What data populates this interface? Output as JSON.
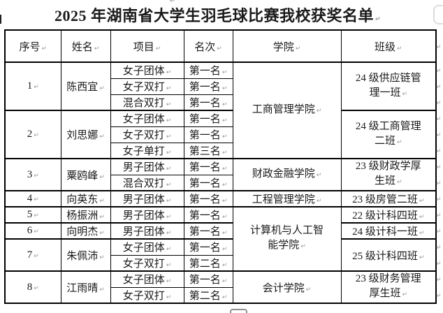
{
  "document": {
    "title": "2025 年湖南省大学生羽毛球比赛我校获奖名单"
  },
  "marks": {
    "pilcrow": "↵"
  },
  "colors": {
    "border": "#000000",
    "formatting_mark": "#9a9a9a",
    "background": "#ffffff"
  },
  "table": {
    "headers": [
      "序号",
      "姓名",
      "项目",
      "名次",
      "学院",
      "班级"
    ],
    "colleges": [
      {
        "name": "工商管理学院"
      },
      {
        "name": "财政金融学院"
      },
      {
        "name": "工程管理学院"
      },
      {
        "name": "计算机与人工智\n能学院"
      },
      {
        "name": "会计学院"
      }
    ],
    "persons": [
      {
        "no": "1",
        "name": "陈西宜",
        "class_name": "24 级供应链管\n理一班",
        "events": [
          {
            "item": "女子团体",
            "rank": "第一名"
          },
          {
            "item": "女子双打",
            "rank": "第一名"
          },
          {
            "item": "混合双打",
            "rank": "第一名"
          }
        ]
      },
      {
        "no": "2",
        "name": "刘思娜",
        "class_name": "24 级工商管理\n二班",
        "events": [
          {
            "item": "女子团体",
            "rank": "第一名"
          },
          {
            "item": "女子双打",
            "rank": "第一名"
          },
          {
            "item": "女子单打",
            "rank": "第三名"
          }
        ]
      },
      {
        "no": "3",
        "name": "粟鸥峰",
        "class_name": "23 级财政学厚\n生班",
        "events": [
          {
            "item": "男子团体",
            "rank": "第一名"
          },
          {
            "item": "混合双打",
            "rank": "第一名"
          }
        ]
      },
      {
        "no": "4",
        "name": "向英东",
        "class_name": "23 级房管二班",
        "events": [
          {
            "item": "男子团体",
            "rank": "第一名"
          }
        ]
      },
      {
        "no": "5",
        "name": "杨振洲",
        "class_name": "22 级计科四班",
        "events": [
          {
            "item": "男子团体",
            "rank": "第一名"
          }
        ]
      },
      {
        "no": "6",
        "name": "向明杰",
        "class_name": "24 级计科一班",
        "events": [
          {
            "item": "男子团体",
            "rank": "第一名"
          }
        ]
      },
      {
        "no": "7",
        "name": "朱佩沛",
        "class_name": "25 级计科四班",
        "events": [
          {
            "item": "女子团体",
            "rank": "第一名"
          },
          {
            "item": "女子双打",
            "rank": "第二名"
          }
        ]
      },
      {
        "no": "8",
        "name": "江雨晴",
        "class_name": "23 级财务管理\n厚生班",
        "events": [
          {
            "item": "女子团体",
            "rank": "第一名"
          },
          {
            "item": "女子双打",
            "rank": "第二名"
          }
        ]
      }
    ]
  }
}
